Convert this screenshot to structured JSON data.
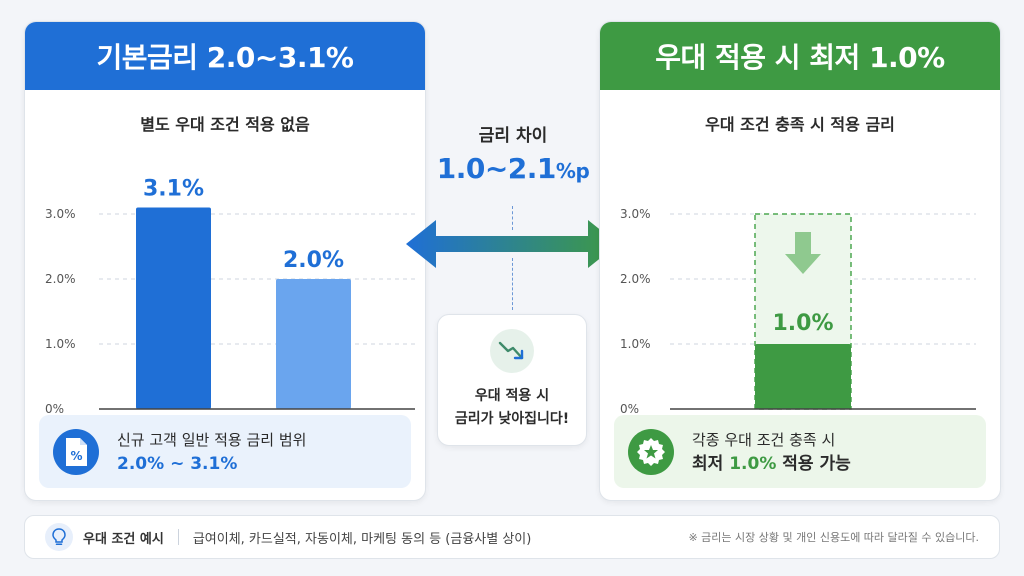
{
  "left": {
    "title": "기본금리 2.0~3.1%",
    "subtitle": "별도 우대 조건 적용 없음",
    "info_line1": "신규 고객 일반 적용 금리 범위",
    "info_line2": "2.0% ~ 3.1%",
    "icon": "percent-document-icon"
  },
  "right": {
    "title": "우대 적용 시 최저 1.0%",
    "subtitle": "우대 조건 충족 시 적용 금리",
    "info_line1": "각종 우대 조건 충족 시",
    "info_line2_pre": "최저 ",
    "info_line2_hl": "1.0%",
    "info_line2_post": " 적용 가능",
    "icon": "star-badge-icon"
  },
  "middle": {
    "title": "금리 차이",
    "value": "1.0~2.1",
    "unit": "%p",
    "card_line1": "우대 적용 시",
    "card_line2": "금리가 낮아집니다!",
    "icon": "trend-down-icon"
  },
  "bottom": {
    "label": "우대 조건 예시",
    "items": "급여이체, 카드실적, 자동이체, 마케팅 동의 등 (금융사별 상이)",
    "note": "※ 금리는 시장 상황 및 개인 신용도에 따라 달라질 수 있습니다.",
    "icon": "lightbulb-icon"
  },
  "colors": {
    "blue": "#1f6fd6",
    "light_blue": "#6aa5ee",
    "green": "#3e9a43"
  },
  "chart_data": [
    {
      "type": "bar",
      "categories": [
        "",
        ""
      ],
      "values": [
        3.1,
        2.0
      ],
      "value_labels": [
        "3.1%",
        "2.0%"
      ],
      "ylim": [
        0,
        3.0
      ],
      "yticks": [
        "0%",
        "1.0%",
        "2.0%",
        "3.0%"
      ],
      "colors": [
        "#1f6fd6",
        "#6aa5ee"
      ],
      "grid": true
    },
    {
      "type": "bar",
      "categories": [
        ""
      ],
      "values": [
        1.0
      ],
      "value_labels": [
        "1.0%"
      ],
      "ylim": [
        0,
        3.0
      ],
      "yticks": [
        "0%",
        "1.0%",
        "2.0%",
        "3.0%"
      ],
      "ghost_value": 3.0,
      "colors": [
        "#3e9a43"
      ],
      "grid": true
    }
  ]
}
